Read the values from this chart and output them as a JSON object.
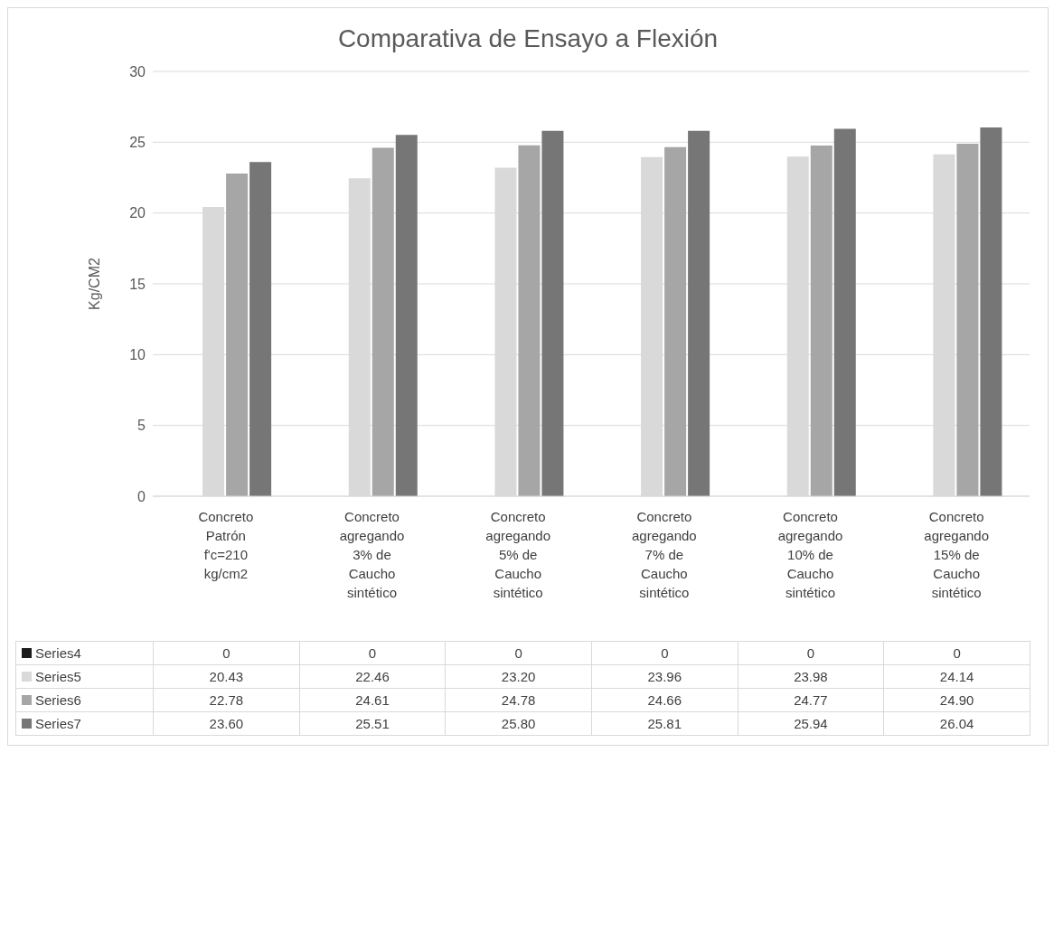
{
  "chart_data": {
    "type": "bar",
    "title": "Comparativa de Ensayo a Flexión",
    "ylabel": "Kg/CM2",
    "categories": [
      "Concreto Patrón f'c=210 kg/cm2",
      "Concreto agregando 3% de Caucho sintético",
      "Concreto agregando 5% de Caucho sintético",
      "Concreto agregando 7% de Caucho sintético",
      "Concreto agregando 10% de Caucho sintético",
      "Concreto agregando 15% de Caucho sintético"
    ],
    "series": [
      {
        "name": "Series4",
        "color": "#1a1a1a",
        "values": [
          0,
          0,
          0,
          0,
          0,
          0
        ],
        "value_labels": [
          "0",
          "0",
          "0",
          "0",
          "0",
          "0"
        ]
      },
      {
        "name": "Series5",
        "color": "#d9d9d9",
        "values": [
          20.43,
          22.46,
          23.2,
          23.96,
          23.98,
          24.14
        ],
        "value_labels": [
          "20.43",
          "22.46",
          "23.20",
          "23.96",
          "23.98",
          "24.14"
        ]
      },
      {
        "name": "Series6",
        "color": "#a6a6a6",
        "values": [
          22.78,
          24.61,
          24.78,
          24.66,
          24.77,
          24.9
        ],
        "value_labels": [
          "22.78",
          "24.61",
          "24.78",
          "24.66",
          "24.77",
          "24.90"
        ]
      },
      {
        "name": "Series7",
        "color": "#767676",
        "values": [
          23.6,
          25.51,
          25.8,
          25.81,
          25.94,
          26.04
        ],
        "value_labels": [
          "23.60",
          "25.51",
          "25.80",
          "25.81",
          "25.94",
          "26.04"
        ]
      }
    ],
    "ylim": [
      0,
      30
    ],
    "yticks": [
      0,
      5,
      10,
      15,
      20,
      25,
      30
    ],
    "grid": "y",
    "legend": "bottom"
  }
}
